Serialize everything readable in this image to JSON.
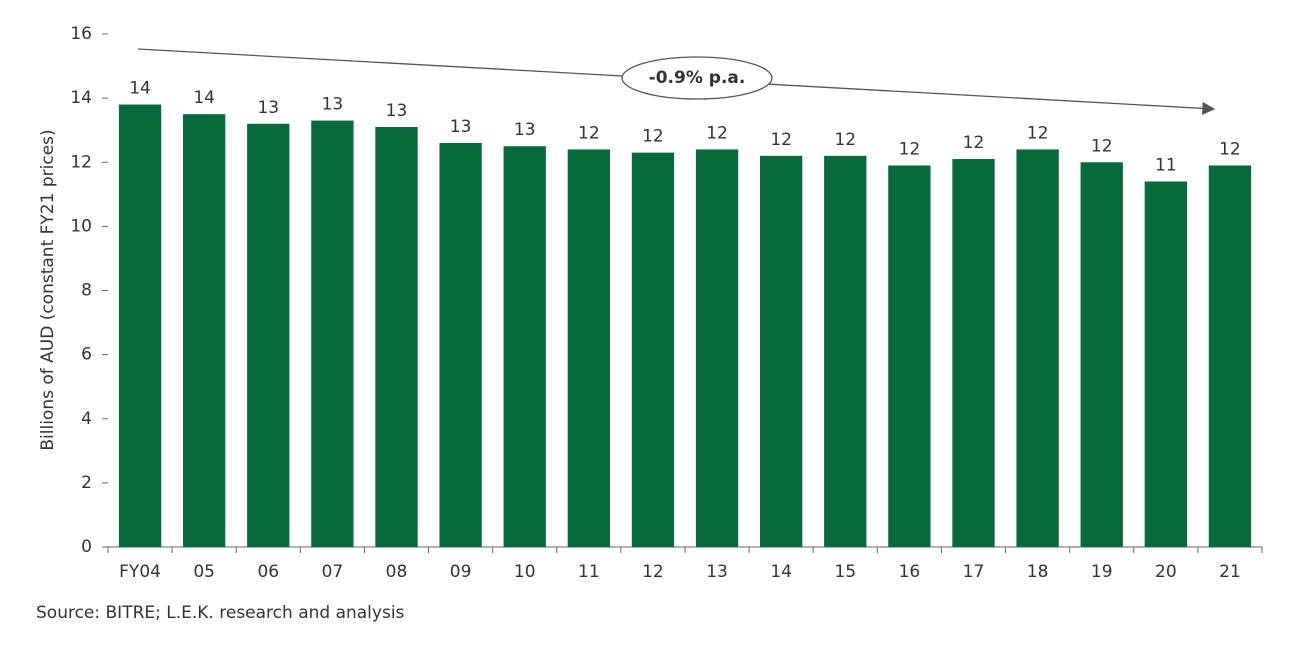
{
  "chart_data": {
    "type": "bar",
    "y_label": "Billions of AUD (constant FY21 prices)",
    "source": "Source: BITRE; L.E.K. research and analysis",
    "annotation": "-0.9% p.a.",
    "categories": [
      "FY04",
      "05",
      "06",
      "07",
      "08",
      "09",
      "10",
      "11",
      "12",
      "13",
      "14",
      "15",
      "16",
      "17",
      "18",
      "19",
      "20",
      "21"
    ],
    "values": [
      13.8,
      13.5,
      13.2,
      13.3,
      13.1,
      12.6,
      12.5,
      12.4,
      12.3,
      12.4,
      12.2,
      12.2,
      11.9,
      12.1,
      12.4,
      12.0,
      11.4,
      11.9
    ],
    "value_labels": [
      "14",
      "14",
      "13",
      "13",
      "13",
      "13",
      "13",
      "12",
      "12",
      "12",
      "12",
      "12",
      "12",
      "12",
      "12",
      "12",
      "11",
      "12"
    ],
    "color": "#076a3b",
    "ylim": [
      0,
      16
    ],
    "yticks": [
      0,
      2,
      4,
      6,
      8,
      10,
      12,
      14,
      16
    ],
    "grid": false
  }
}
